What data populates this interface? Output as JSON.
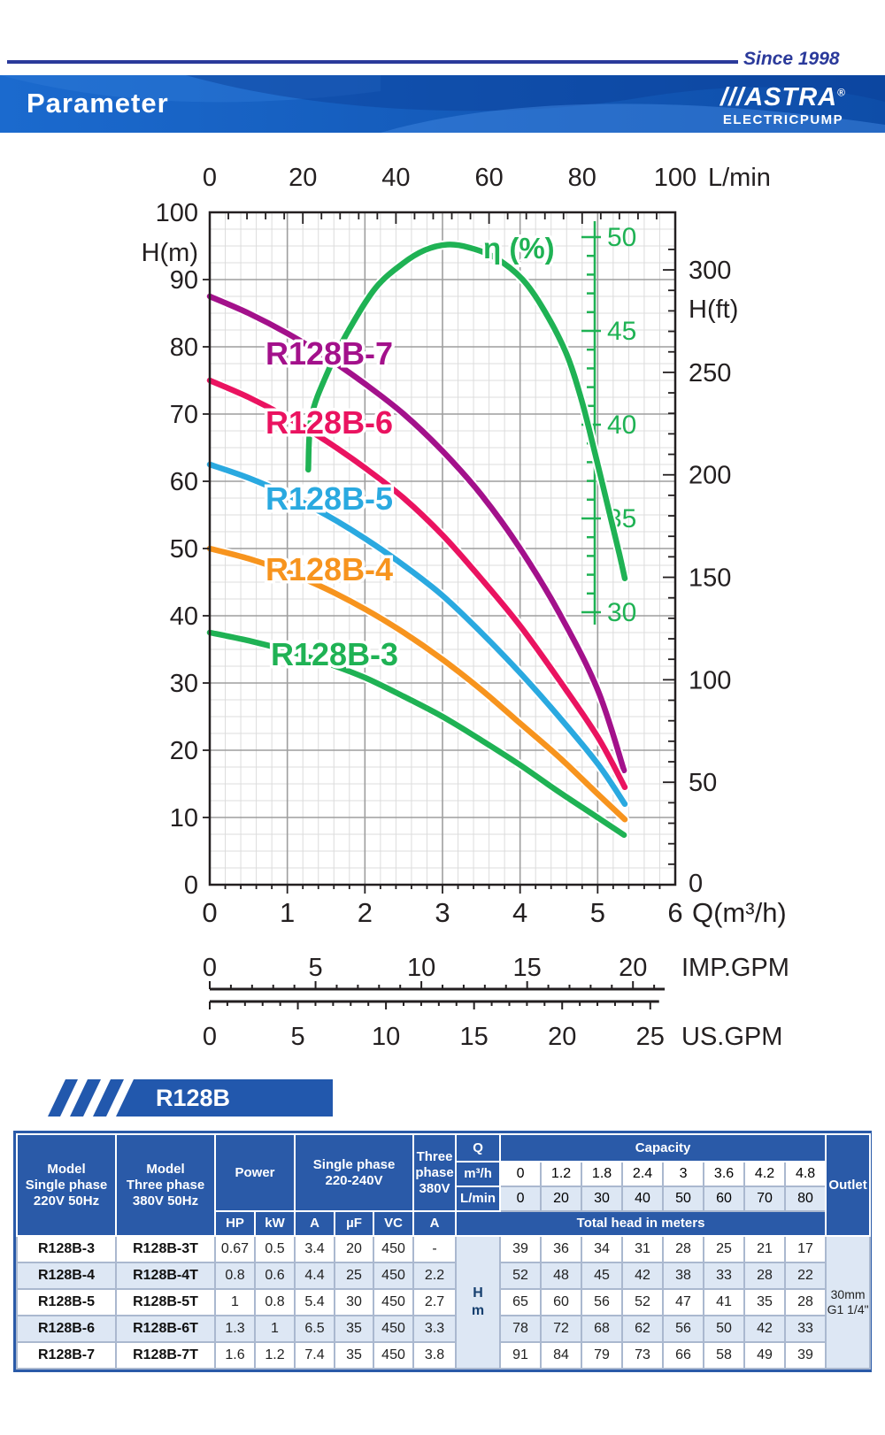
{
  "header": {
    "since": "Since 1998",
    "title": "Parameter",
    "brand_slashes": "///",
    "brand": "ASTRA",
    "brand_reg": "®",
    "brand_sub": "ELECTRICPUMP"
  },
  "series_banner": "R128B",
  "chart_data": {
    "type": "line",
    "title": "Pump performance curves H-Q with efficiency",
    "grid": true,
    "x_axis": {
      "label": "Q(m³/h)",
      "min": 0,
      "max": 6,
      "ticks": [
        0,
        1,
        2,
        3,
        4,
        5,
        6
      ]
    },
    "x_axis_top": {
      "label": "L/min",
      "min": 0,
      "max": 100,
      "ticks": [
        0,
        20,
        40,
        60,
        80,
        100
      ]
    },
    "y_axis": {
      "label": "H(m)",
      "min": 0,
      "max": 100,
      "ticks": [
        100,
        90,
        80,
        70,
        60,
        50,
        40,
        30,
        20,
        10,
        0
      ]
    },
    "y_axis_right": {
      "label": "H(ft)",
      "ticks": [
        300,
        250,
        200,
        150,
        100,
        50,
        0
      ]
    },
    "efficiency_axis": {
      "label": "η (%)",
      "ticks": [
        50,
        45,
        40,
        35,
        30
      ],
      "color": "#1fb254"
    },
    "gpm_imperial": {
      "label": "IMP.GPM",
      "ticks": [
        0,
        5,
        10,
        15,
        20
      ],
      "extent": 21.5
    },
    "gpm_us": {
      "label": "US.GPM",
      "ticks": [
        0,
        5,
        10,
        15,
        20,
        25
      ],
      "extent": 25.5
    },
    "series": [
      {
        "name": "R128B-7",
        "color": "#a3118b",
        "points": [
          [
            0,
            87.5
          ],
          [
            0.5,
            85
          ],
          [
            1,
            82
          ],
          [
            1.5,
            78.5
          ],
          [
            2,
            74.5
          ],
          [
            2.5,
            70
          ],
          [
            3,
            64.5
          ],
          [
            3.5,
            58
          ],
          [
            4,
            50
          ],
          [
            4.5,
            40.5
          ],
          [
            5,
            29
          ],
          [
            5.34,
            17
          ]
        ]
      },
      {
        "name": "R128B-6",
        "color": "#ea1360",
        "points": [
          [
            0,
            75
          ],
          [
            0.5,
            72.5
          ],
          [
            1,
            69.5
          ],
          [
            1.5,
            66
          ],
          [
            2,
            62
          ],
          [
            2.5,
            57.5
          ],
          [
            3,
            52
          ],
          [
            3.5,
            45.5
          ],
          [
            4,
            38.5
          ],
          [
            4.5,
            30.5
          ],
          [
            5,
            22
          ],
          [
            5.35,
            14.5
          ]
        ]
      },
      {
        "name": "R128B-5",
        "color": "#2aa9e0",
        "points": [
          [
            0,
            62.5
          ],
          [
            0.5,
            60.5
          ],
          [
            1,
            58
          ],
          [
            1.5,
            55
          ],
          [
            2,
            51.5
          ],
          [
            2.5,
            47.5
          ],
          [
            3,
            43
          ],
          [
            3.5,
            37.5
          ],
          [
            4,
            31.5
          ],
          [
            4.5,
            25
          ],
          [
            5,
            18
          ],
          [
            5.35,
            12
          ]
        ]
      },
      {
        "name": "R128B-4",
        "color": "#f7941e",
        "points": [
          [
            0,
            50
          ],
          [
            0.5,
            48.5
          ],
          [
            1,
            46.5
          ],
          [
            1.5,
            44
          ],
          [
            2,
            41
          ],
          [
            2.5,
            37.5
          ],
          [
            3,
            33.5
          ],
          [
            3.5,
            29
          ],
          [
            4,
            24
          ],
          [
            4.5,
            19
          ],
          [
            5,
            13.5
          ],
          [
            5.35,
            9.7
          ]
        ]
      },
      {
        "name": "R128B-3",
        "color": "#1fb254",
        "points": [
          [
            0,
            37.5
          ],
          [
            0.5,
            36.3
          ],
          [
            1,
            34.8
          ],
          [
            1.5,
            33
          ],
          [
            2,
            30.8
          ],
          [
            2.5,
            28
          ],
          [
            3,
            25
          ],
          [
            3.5,
            21.5
          ],
          [
            4,
            17.8
          ],
          [
            4.5,
            13.8
          ],
          [
            5,
            10
          ],
          [
            5.34,
            7.4
          ]
        ]
      }
    ],
    "efficiency_curve": {
      "name": "η (%)",
      "color": "#1fb254",
      "points": [
        [
          1.27,
          37.6
        ],
        [
          1.31,
          40.4
        ],
        [
          1.52,
          42.8
        ],
        [
          1.8,
          45.1
        ],
        [
          2.14,
          47.3
        ],
        [
          2.49,
          48.6
        ],
        [
          2.77,
          49.3
        ],
        [
          3.06,
          49.6
        ],
        [
          3.34,
          49.45
        ],
        [
          3.68,
          48.9
        ],
        [
          4.03,
          47.75
        ],
        [
          4.31,
          46.1
        ],
        [
          4.6,
          43.75
        ],
        [
          4.8,
          41.2
        ],
        [
          4.97,
          38.4
        ],
        [
          5.14,
          35.5
        ],
        [
          5.28,
          33.1
        ],
        [
          5.35,
          31.8
        ]
      ]
    }
  },
  "table": {
    "header": {
      "model_single": "Model\nSingle phase\n220V 50Hz",
      "model_three": "Model\nThree phase\n380V 50Hz",
      "power": "Power",
      "single_phase": "Single phase\n220-240V",
      "three_phase": "Three\nphase\n380V",
      "q": "Q",
      "q_m3h": "m³/h",
      "q_lmin": "L/min",
      "capacity": "Capacity",
      "outlet": "Outlet",
      "total_head": "Total head in meters",
      "hm": "H\nm",
      "outlet_value": "30mm\nG1 1/4\"",
      "sub": [
        "HP",
        "kW",
        "A",
        "µF",
        "VC",
        "A"
      ]
    },
    "capacity_m3h": [
      "0",
      "1.2",
      "1.8",
      "2.4",
      "3",
      "3.6",
      "4.2",
      "4.8"
    ],
    "capacity_lmin": [
      "0",
      "20",
      "30",
      "40",
      "50",
      "60",
      "70",
      "80"
    ],
    "rows": [
      {
        "model": "R128B-3",
        "model_t": "R128B-3T",
        "hp": "0.67",
        "kw": "0.5",
        "a": "3.4",
        "uf": "20",
        "vc": "450",
        "a3": "-",
        "heads": [
          "39",
          "36",
          "34",
          "31",
          "28",
          "25",
          "21",
          "17"
        ]
      },
      {
        "model": "R128B-4",
        "model_t": "R128B-4T",
        "hp": "0.8",
        "kw": "0.6",
        "a": "4.4",
        "uf": "25",
        "vc": "450",
        "a3": "2.2",
        "heads": [
          "52",
          "48",
          "45",
          "42",
          "38",
          "33",
          "28",
          "22"
        ]
      },
      {
        "model": "R128B-5",
        "model_t": "R128B-5T",
        "hp": "1",
        "kw": "0.8",
        "a": "5.4",
        "uf": "30",
        "vc": "450",
        "a3": "2.7",
        "heads": [
          "65",
          "60",
          "56",
          "52",
          "47",
          "41",
          "35",
          "28"
        ]
      },
      {
        "model": "R128B-6",
        "model_t": "R128B-6T",
        "hp": "1.3",
        "kw": "1",
        "a": "6.5",
        "uf": "35",
        "vc": "450",
        "a3": "3.3",
        "heads": [
          "78",
          "72",
          "68",
          "62",
          "56",
          "50",
          "42",
          "33"
        ]
      },
      {
        "model": "R128B-7",
        "model_t": "R128B-7T",
        "hp": "1.6",
        "kw": "1.2",
        "a": "7.4",
        "uf": "35",
        "vc": "450",
        "a3": "3.8",
        "heads": [
          "91",
          "84",
          "79",
          "73",
          "66",
          "58",
          "49",
          "39"
        ]
      }
    ]
  }
}
